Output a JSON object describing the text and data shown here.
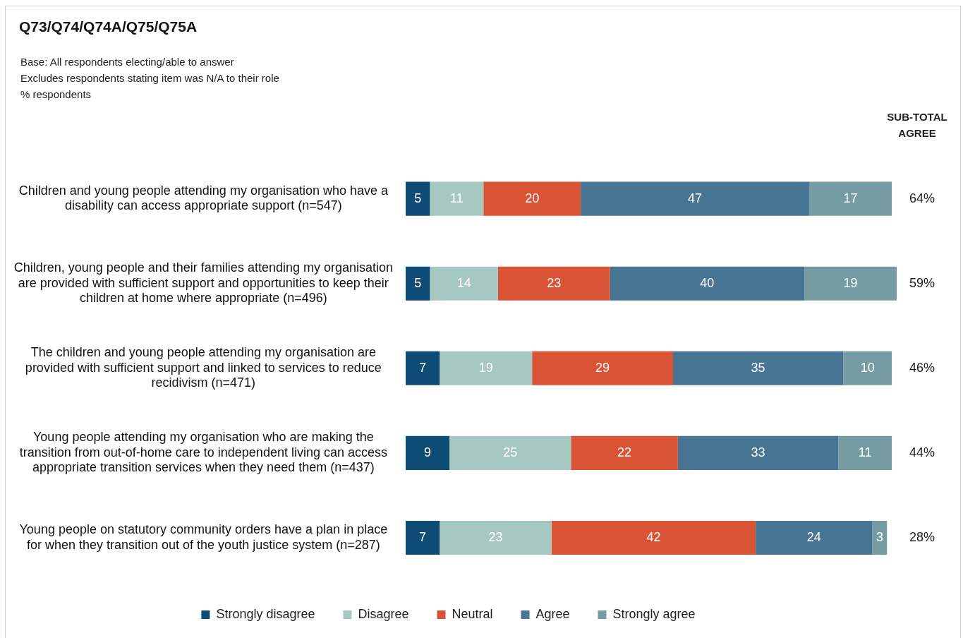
{
  "chart_data": {
    "type": "bar",
    "orientation": "horizontal",
    "stacked": true,
    "title": "Q73/Q74/Q74A/Q75/Q75A",
    "subtitle": "Base: All respondents electing/able to answer\nExcludes respondents stating item was N/A to their role\n% respondents",
    "categories": [
      "Children and young people attending my organisation who have a disability can access appropriate support (n=547)",
      "Children, young people and their families attending my organisation are provided with sufficient support and opportunities to keep their children at home where appropriate (n=496)",
      "The children and young people attending my organisation are provided with sufficient support and linked to services to reduce recidivism (n=471)",
      "Young people attending my organisation who are making the transition from out-of-home care to independent living can access appropriate transition services when they need them (n=437)",
      "Young people on statutory community orders have a plan in place for when they transition out of the youth justice system (n=287)"
    ],
    "series": [
      {
        "name": "Strongly disagree",
        "color": "#0f4c75",
        "values": [
          5,
          5,
          7,
          9,
          7
        ]
      },
      {
        "name": "Disagree",
        "color": "#a5c8c0",
        "values": [
          11,
          14,
          19,
          25,
          23
        ]
      },
      {
        "name": "Neutral",
        "color": "#d95335",
        "values": [
          20,
          23,
          29,
          22,
          42
        ]
      },
      {
        "name": "Agree",
        "color": "#487594",
        "values": [
          47,
          40,
          35,
          33,
          24
        ]
      },
      {
        "name": "Strongly agree",
        "color": "#759ca3",
        "values": [
          17,
          19,
          10,
          11,
          3
        ]
      }
    ],
    "xlim": [
      0,
      101
    ],
    "tick_labels": "y",
    "grid": false,
    "data_labels": true,
    "legend": "bottom",
    "annotations": [
      "SUB-TOTAL AGREE",
      "64%",
      "59%",
      "46%",
      "44%",
      "28%"
    ]
  }
}
